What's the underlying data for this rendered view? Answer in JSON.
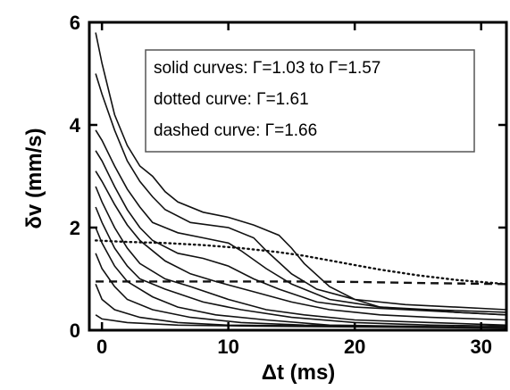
{
  "chart_data": {
    "type": "line",
    "xlabel": "Δt (ms)",
    "ylabel": "δv (mm/s)",
    "xlim": [
      -1,
      32
    ],
    "ylim": [
      0,
      6
    ],
    "x_ticks": [
      0,
      10,
      20,
      30
    ],
    "y_ticks": [
      0,
      2,
      4,
      6
    ],
    "x_tick_labels": [
      "0",
      "10",
      "20",
      "30"
    ],
    "y_tick_labels": [
      "0",
      "2",
      "4",
      "6"
    ],
    "grid": false,
    "legend": {
      "placement": "top-right",
      "entries": [
        "solid curves: Γ=1.03 to Γ=1.57",
        "dotted curve: Γ=1.61",
        "dashed curve: Γ=1.66"
      ]
    },
    "series": [
      {
        "style": "solid",
        "points": [
          [
            -0.5,
            5.8
          ],
          [
            0,
            5.2
          ],
          [
            1,
            4.2
          ],
          [
            2,
            3.6
          ],
          [
            3,
            3.2
          ],
          [
            4,
            3.0
          ],
          [
            5,
            2.7
          ],
          [
            6,
            2.5
          ],
          [
            8,
            2.3
          ],
          [
            10,
            2.2
          ],
          [
            12,
            2.05
          ],
          [
            14,
            1.85
          ],
          [
            15,
            1.6
          ],
          [
            16,
            1.3
          ],
          [
            18,
            0.85
          ],
          [
            20,
            0.6
          ],
          [
            22,
            0.45
          ],
          [
            25,
            0.4
          ],
          [
            28,
            0.35
          ],
          [
            32,
            0.3
          ]
        ]
      },
      {
        "style": "solid",
        "points": [
          [
            -0.5,
            5.0
          ],
          [
            0,
            4.6
          ],
          [
            1,
            3.9
          ],
          [
            2,
            3.3
          ],
          [
            3,
            2.9
          ],
          [
            4,
            2.6
          ],
          [
            5,
            2.35
          ],
          [
            7,
            2.1
          ],
          [
            10,
            2.0
          ],
          [
            12,
            1.8
          ],
          [
            13,
            1.55
          ],
          [
            15,
            1.1
          ],
          [
            17,
            0.8
          ],
          [
            20,
            0.6
          ],
          [
            24,
            0.5
          ],
          [
            28,
            0.45
          ],
          [
            32,
            0.4
          ]
        ]
      },
      {
        "style": "solid",
        "points": [
          [
            -0.5,
            3.9
          ],
          [
            0,
            3.7
          ],
          [
            1,
            3.2
          ],
          [
            2,
            2.75
          ],
          [
            3,
            2.4
          ],
          [
            4,
            2.1
          ],
          [
            6,
            1.9
          ],
          [
            8,
            1.8
          ],
          [
            10,
            1.7
          ],
          [
            11,
            1.55
          ],
          [
            13,
            1.2
          ],
          [
            15,
            0.9
          ],
          [
            18,
            0.6
          ],
          [
            22,
            0.45
          ],
          [
            26,
            0.4
          ],
          [
            32,
            0.35
          ]
        ]
      },
      {
        "style": "solid",
        "points": [
          [
            -0.5,
            3.5
          ],
          [
            0,
            3.3
          ],
          [
            1,
            2.8
          ],
          [
            2,
            2.35
          ],
          [
            3,
            2.0
          ],
          [
            4,
            1.75
          ],
          [
            6,
            1.5
          ],
          [
            8,
            1.4
          ],
          [
            10,
            1.25
          ],
          [
            12,
            1.0
          ],
          [
            14,
            0.8
          ],
          [
            17,
            0.55
          ],
          [
            20,
            0.45
          ],
          [
            24,
            0.4
          ],
          [
            32,
            0.3
          ]
        ]
      },
      {
        "style": "solid",
        "points": [
          [
            -0.5,
            3.1
          ],
          [
            0,
            2.9
          ],
          [
            1,
            2.45
          ],
          [
            2,
            2.05
          ],
          [
            3,
            1.75
          ],
          [
            5,
            1.35
          ],
          [
            7,
            1.1
          ],
          [
            9,
            0.95
          ],
          [
            12,
            0.75
          ],
          [
            15,
            0.55
          ],
          [
            18,
            0.4
          ],
          [
            22,
            0.3
          ],
          [
            26,
            0.25
          ],
          [
            32,
            0.2
          ]
        ]
      },
      {
        "style": "solid",
        "points": [
          [
            -0.5,
            2.8
          ],
          [
            0,
            2.5
          ],
          [
            1,
            2.0
          ],
          [
            2,
            1.6
          ],
          [
            3,
            1.3
          ],
          [
            5,
            1.0
          ],
          [
            7,
            0.85
          ],
          [
            10,
            0.6
          ],
          [
            13,
            0.4
          ],
          [
            16,
            0.3
          ],
          [
            20,
            0.2
          ],
          [
            26,
            0.15
          ],
          [
            32,
            0.1
          ]
        ]
      },
      {
        "style": "solid",
        "points": [
          [
            -0.5,
            2.4
          ],
          [
            0,
            2.1
          ],
          [
            1,
            1.6
          ],
          [
            2,
            1.25
          ],
          [
            3,
            1.0
          ],
          [
            5,
            0.8
          ],
          [
            8,
            0.55
          ],
          [
            11,
            0.4
          ],
          [
            15,
            0.25
          ],
          [
            20,
            0.15
          ],
          [
            26,
            0.1
          ],
          [
            32,
            0.08
          ]
        ]
      },
      {
        "style": "solid",
        "points": [
          [
            -0.5,
            2.0
          ],
          [
            0,
            1.7
          ],
          [
            1,
            1.25
          ],
          [
            2,
            0.95
          ],
          [
            4,
            0.65
          ],
          [
            6,
            0.45
          ],
          [
            9,
            0.3
          ],
          [
            13,
            0.2
          ],
          [
            18,
            0.1
          ],
          [
            32,
            0.05
          ]
        ]
      },
      {
        "style": "solid",
        "points": [
          [
            -0.5,
            1.5
          ],
          [
            0,
            1.2
          ],
          [
            1,
            0.85
          ],
          [
            2,
            0.6
          ],
          [
            4,
            0.4
          ],
          [
            7,
            0.25
          ],
          [
            11,
            0.15
          ],
          [
            16,
            0.1
          ],
          [
            32,
            0.05
          ]
        ]
      },
      {
        "style": "solid",
        "points": [
          [
            -0.5,
            0.9
          ],
          [
            0,
            0.6
          ],
          [
            1,
            0.4
          ],
          [
            3,
            0.25
          ],
          [
            6,
            0.15
          ],
          [
            10,
            0.1
          ],
          [
            32,
            0.05
          ]
        ]
      },
      {
        "style": "solid",
        "points": [
          [
            -0.5,
            0.3
          ],
          [
            0,
            0.22
          ],
          [
            2,
            0.15
          ],
          [
            6,
            0.1
          ],
          [
            12,
            0.08
          ],
          [
            32,
            0.04
          ]
        ]
      },
      {
        "style": "dotted",
        "points": [
          [
            -0.5,
            1.75
          ],
          [
            2,
            1.72
          ],
          [
            5,
            1.7
          ],
          [
            8,
            1.66
          ],
          [
            11,
            1.6
          ],
          [
            14,
            1.52
          ],
          [
            16,
            1.45
          ],
          [
            18,
            1.36
          ],
          [
            20,
            1.27
          ],
          [
            22,
            1.18
          ],
          [
            25,
            1.07
          ],
          [
            28,
            0.98
          ],
          [
            32,
            0.9
          ]
        ]
      },
      {
        "style": "dashed",
        "points": [
          [
            -0.5,
            0.95
          ],
          [
            5,
            0.95
          ],
          [
            10,
            0.95
          ],
          [
            15,
            0.95
          ],
          [
            20,
            0.94
          ],
          [
            25,
            0.92
          ],
          [
            32,
            0.9
          ]
        ]
      }
    ]
  }
}
